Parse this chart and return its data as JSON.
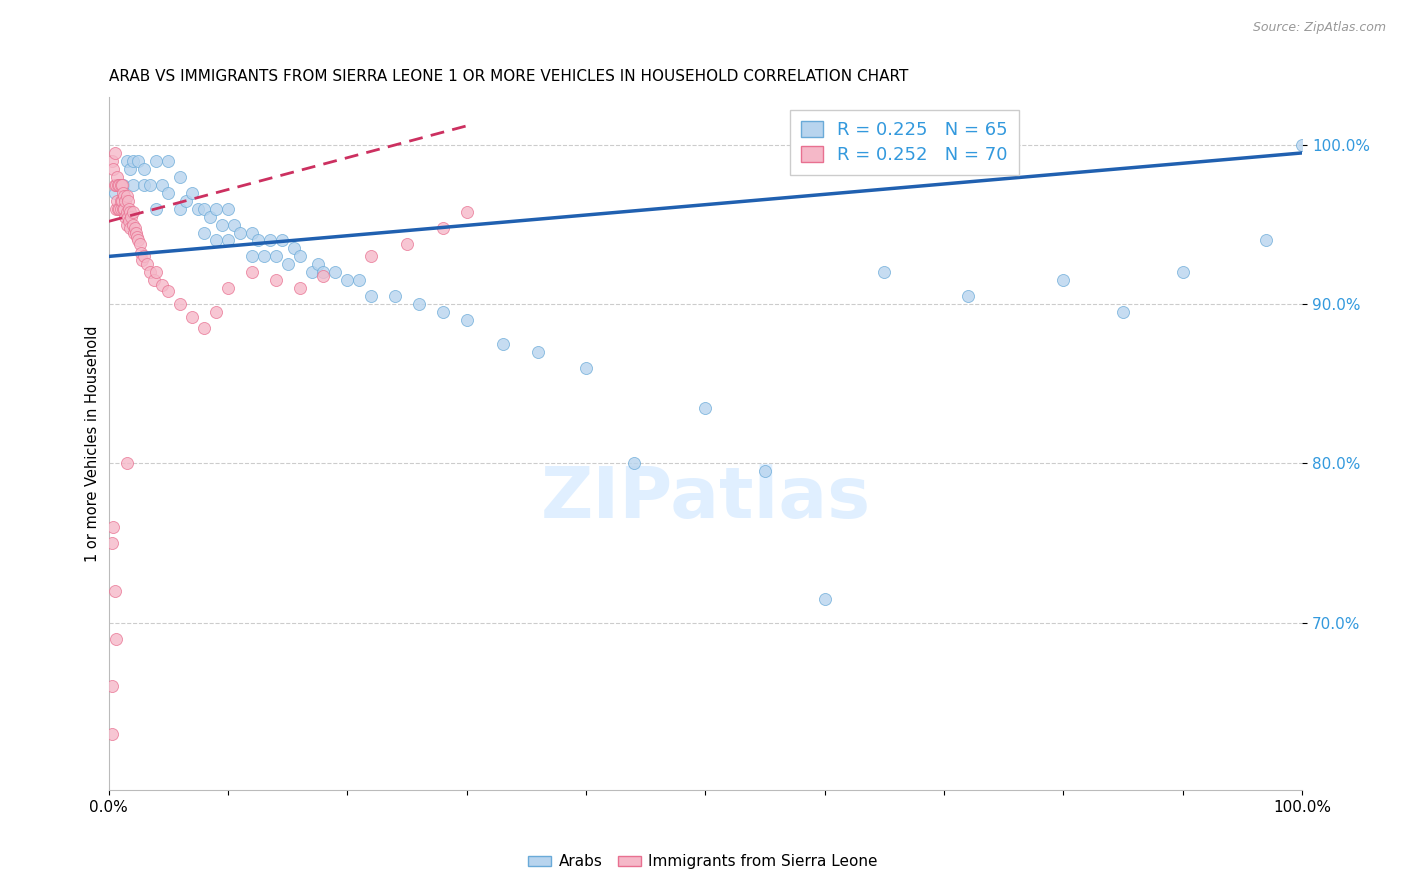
{
  "title": "ARAB VS IMMIGRANTS FROM SIERRA LEONE 1 OR MORE VEHICLES IN HOUSEHOLD CORRELATION CHART",
  "source": "Source: ZipAtlas.com",
  "ylabel": "1 or more Vehicles in Household",
  "xlim": [
    0.0,
    1.0
  ],
  "ylim": [
    0.595,
    1.03
  ],
  "yticks": [
    0.7,
    0.8,
    0.9,
    1.0
  ],
  "ytick_labels": [
    "70.0%",
    "80.0%",
    "90.0%",
    "100.0%"
  ],
  "xticks": [
    0.0,
    0.1,
    0.2,
    0.3,
    0.4,
    0.5,
    0.6,
    0.7,
    0.8,
    0.9,
    1.0
  ],
  "xtick_labels": [
    "0.0%",
    "",
    "",
    "",
    "",
    "",
    "",
    "",
    "",
    "",
    "100.0%"
  ],
  "legend_r1": "R = 0.225",
  "legend_n1": "N = 65",
  "legend_r2": "R = 0.252",
  "legend_n2": "N = 70",
  "legend_label1": "Arabs",
  "legend_label2": "Immigrants from Sierra Leone",
  "color_arab_fill": "#b8d4ee",
  "color_arab_edge": "#6aaad8",
  "color_arab_line": "#2060b0",
  "color_sl_fill": "#f5b8c8",
  "color_sl_edge": "#e87090",
  "color_sl_line": "#cc3060",
  "r_text_color": "#3399dd",
  "arab_R": 0.225,
  "arab_N": 65,
  "sl_R": 0.252,
  "sl_N": 70,
  "arab_x": [
    0.005,
    0.012,
    0.015,
    0.018,
    0.02,
    0.02,
    0.025,
    0.03,
    0.03,
    0.035,
    0.04,
    0.04,
    0.045,
    0.05,
    0.05,
    0.06,
    0.06,
    0.065,
    0.07,
    0.075,
    0.08,
    0.08,
    0.085,
    0.09,
    0.09,
    0.095,
    0.1,
    0.1,
    0.105,
    0.11,
    0.12,
    0.12,
    0.125,
    0.13,
    0.135,
    0.14,
    0.145,
    0.15,
    0.155,
    0.16,
    0.17,
    0.175,
    0.18,
    0.19,
    0.2,
    0.21,
    0.22,
    0.24,
    0.26,
    0.28,
    0.3,
    0.33,
    0.36,
    0.4,
    0.44,
    0.5,
    0.55,
    0.6,
    0.65,
    0.72,
    0.8,
    0.85,
    0.9,
    0.97,
    1.0
  ],
  "arab_y": [
    0.97,
    0.975,
    0.99,
    0.985,
    0.99,
    0.975,
    0.99,
    0.985,
    0.975,
    0.975,
    0.99,
    0.96,
    0.975,
    0.99,
    0.97,
    0.98,
    0.96,
    0.965,
    0.97,
    0.96,
    0.96,
    0.945,
    0.955,
    0.96,
    0.94,
    0.95,
    0.96,
    0.94,
    0.95,
    0.945,
    0.945,
    0.93,
    0.94,
    0.93,
    0.94,
    0.93,
    0.94,
    0.925,
    0.935,
    0.93,
    0.92,
    0.925,
    0.92,
    0.92,
    0.915,
    0.915,
    0.905,
    0.905,
    0.9,
    0.895,
    0.89,
    0.875,
    0.87,
    0.86,
    0.8,
    0.835,
    0.795,
    0.715,
    0.92,
    0.905,
    0.915,
    0.895,
    0.92,
    0.94,
    1.0
  ],
  "sl_x": [
    0.003,
    0.004,
    0.005,
    0.005,
    0.006,
    0.006,
    0.007,
    0.007,
    0.008,
    0.008,
    0.009,
    0.009,
    0.01,
    0.01,
    0.01,
    0.011,
    0.011,
    0.012,
    0.012,
    0.013,
    0.013,
    0.014,
    0.014,
    0.015,
    0.015,
    0.015,
    0.016,
    0.016,
    0.017,
    0.017,
    0.018,
    0.018,
    0.019,
    0.02,
    0.02,
    0.021,
    0.022,
    0.023,
    0.024,
    0.025,
    0.026,
    0.027,
    0.028,
    0.03,
    0.032,
    0.035,
    0.038,
    0.04,
    0.045,
    0.05,
    0.06,
    0.07,
    0.08,
    0.09,
    0.1,
    0.12,
    0.14,
    0.16,
    0.18,
    0.22,
    0.25,
    0.28,
    0.3,
    0.015,
    0.003,
    0.004,
    0.005,
    0.006,
    0.003,
    0.003
  ],
  "sl_y": [
    0.99,
    0.985,
    0.995,
    0.975,
    0.975,
    0.96,
    0.98,
    0.965,
    0.975,
    0.96,
    0.975,
    0.96,
    0.975,
    0.965,
    0.96,
    0.975,
    0.965,
    0.97,
    0.96,
    0.968,
    0.96,
    0.965,
    0.955,
    0.968,
    0.958,
    0.95,
    0.965,
    0.955,
    0.96,
    0.952,
    0.958,
    0.948,
    0.955,
    0.958,
    0.95,
    0.945,
    0.948,
    0.945,
    0.942,
    0.94,
    0.938,
    0.932,
    0.928,
    0.93,
    0.925,
    0.92,
    0.915,
    0.92,
    0.912,
    0.908,
    0.9,
    0.892,
    0.885,
    0.895,
    0.91,
    0.92,
    0.915,
    0.91,
    0.918,
    0.93,
    0.938,
    0.948,
    0.958,
    0.8,
    0.75,
    0.76,
    0.72,
    0.69,
    0.66,
    0.63
  ]
}
